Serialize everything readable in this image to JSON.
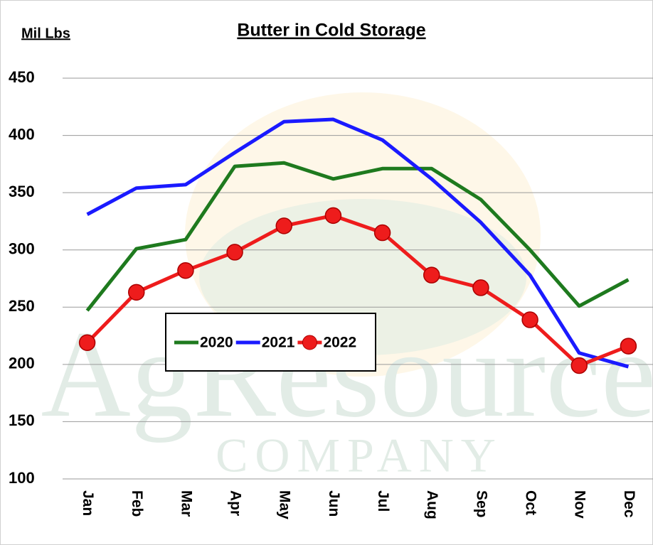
{
  "chart_data": {
    "type": "line",
    "title": "Butter in Cold Storage",
    "y_label": "Mil Lbs",
    "watermark": [
      "AgResource",
      "COMPANY"
    ],
    "categories": [
      "Jan",
      "Feb",
      "Mar",
      "Apr",
      "May",
      "Jun",
      "Jul",
      "Aug",
      "Sep",
      "Oct",
      "Nov",
      "Dec"
    ],
    "series": [
      {
        "name": "2020",
        "color": "#1e7a1e",
        "values": [
          247,
          301,
          309,
          373,
          376,
          362,
          371,
          371,
          344,
          300,
          251,
          274
        ]
      },
      {
        "name": "2021",
        "color": "#1a1aff",
        "values": [
          331,
          354,
          357,
          385,
          412,
          414,
          396,
          362,
          324,
          278,
          210,
          198
        ]
      },
      {
        "name": "2022",
        "color": "#ee1c1c",
        "marker": "circle",
        "values": [
          219,
          263,
          282,
          298,
          321,
          330,
          315,
          278,
          267,
          239,
          199,
          216
        ]
      }
    ],
    "ylim": [
      100,
      450
    ],
    "yticks": [
      100,
      150,
      200,
      250,
      300,
      350,
      400,
      450
    ],
    "grid": true
  }
}
